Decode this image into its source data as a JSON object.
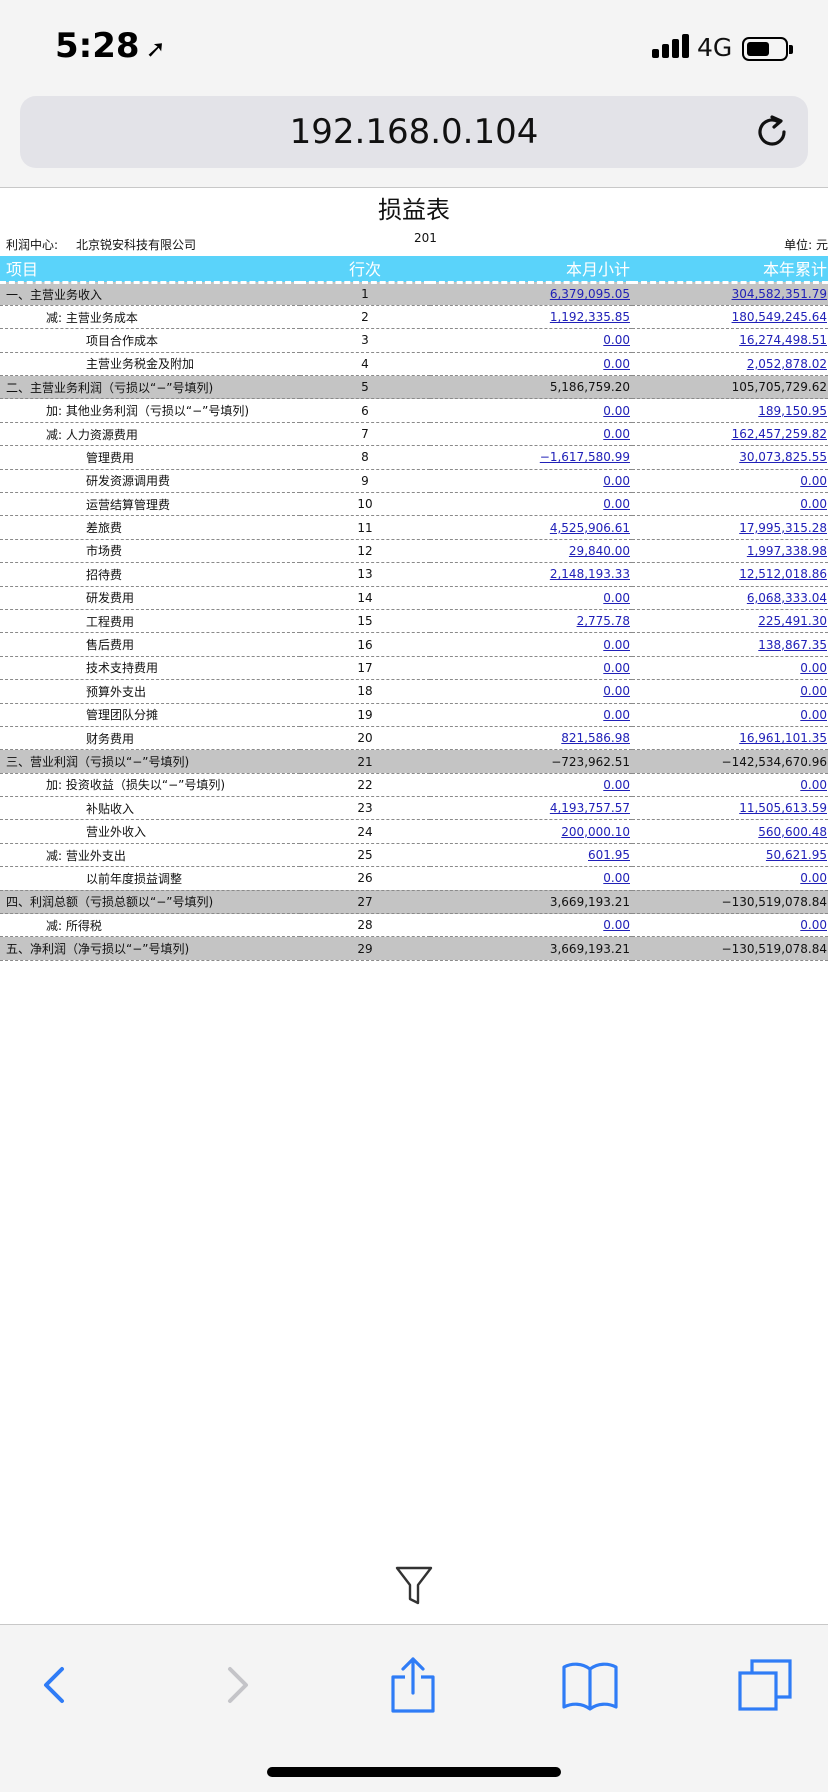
{
  "status_bar": {
    "time": "5:28",
    "network": "4G"
  },
  "browser": {
    "url": "192.168.0.104"
  },
  "report": {
    "title": "损益表",
    "profit_center_label": "利润中心:",
    "profit_center_value": "北京锐安科技有限公司",
    "period": "201",
    "unit": "单位: 元"
  },
  "table": {
    "headers": {
      "item": "项目",
      "line": "行次",
      "month": "本月小计",
      "year": "本年累计"
    },
    "rows": [
      {
        "item": "一、主营业务收入",
        "line": "1",
        "month": "6,379,095.05",
        "year": "304,582,351.79",
        "level": 0,
        "main": true,
        "link": true
      },
      {
        "item": "减: 主营业务成本",
        "line": "2",
        "month": "1,192,335.85",
        "year": "180,549,245.64",
        "level": 1,
        "main": false,
        "link": true
      },
      {
        "item": "项目合作成本",
        "line": "3",
        "month": "0.00",
        "year": "16,274,498.51",
        "level": 2,
        "main": false,
        "link": true
      },
      {
        "item": "主营业务税金及附加",
        "line": "4",
        "month": "0.00",
        "year": "2,052,878.02",
        "level": 2,
        "main": false,
        "link": true
      },
      {
        "item": "二、主营业务利润（亏损以“−”号填列)",
        "line": "5",
        "month": "5,186,759.20",
        "year": "105,705,729.62",
        "level": 0,
        "main": true,
        "link": false
      },
      {
        "item": "加: 其他业务利润（亏损以“−”号填列)",
        "line": "6",
        "month": "0.00",
        "year": "189,150.95",
        "level": 1,
        "main": false,
        "link": true
      },
      {
        "item": "减: 人力资源费用",
        "line": "7",
        "month": "0.00",
        "year": "162,457,259.82",
        "level": 1,
        "main": false,
        "link": true
      },
      {
        "item": "管理费用",
        "line": "8",
        "month": "−1,617,580.99",
        "year": "30,073,825.55",
        "level": 2,
        "main": false,
        "link": true
      },
      {
        "item": "研发资源调用费",
        "line": "9",
        "month": "0.00",
        "year": "0.00",
        "level": 2,
        "main": false,
        "link": true
      },
      {
        "item": "运营结算管理费",
        "line": "10",
        "month": "0.00",
        "year": "0.00",
        "level": 2,
        "main": false,
        "link": true
      },
      {
        "item": "差旅费",
        "line": "11",
        "month": "4,525,906.61",
        "year": "17,995,315.28",
        "level": 2,
        "main": false,
        "link": true
      },
      {
        "item": "市场费",
        "line": "12",
        "month": "29,840.00",
        "year": "1,997,338.98",
        "level": 2,
        "main": false,
        "link": true
      },
      {
        "item": "招待费",
        "line": "13",
        "month": "2,148,193.33",
        "year": "12,512,018.86",
        "level": 2,
        "main": false,
        "link": true
      },
      {
        "item": "研发费用",
        "line": "14",
        "month": "0.00",
        "year": "6,068,333.04",
        "level": 2,
        "main": false,
        "link": true
      },
      {
        "item": "工程费用",
        "line": "15",
        "month": "2,775.78",
        "year": "225,491.30",
        "level": 2,
        "main": false,
        "link": true
      },
      {
        "item": "售后费用",
        "line": "16",
        "month": "0.00",
        "year": "138,867.35",
        "level": 2,
        "main": false,
        "link": true
      },
      {
        "item": "技术支持费用",
        "line": "17",
        "month": "0.00",
        "year": "0.00",
        "level": 2,
        "main": false,
        "link": true
      },
      {
        "item": "预算外支出",
        "line": "18",
        "month": "0.00",
        "year": "0.00",
        "level": 2,
        "main": false,
        "link": true
      },
      {
        "item": "管理团队分摊",
        "line": "19",
        "month": "0.00",
        "year": "0.00",
        "level": 2,
        "main": false,
        "link": true
      },
      {
        "item": "财务费用",
        "line": "20",
        "month": "821,586.98",
        "year": "16,961,101.35",
        "level": 2,
        "main": false,
        "link": true
      },
      {
        "item": "三、营业利润（亏损以“−”号填列)",
        "line": "21",
        "month": "−723,962.51",
        "year": "−142,534,670.96",
        "level": 0,
        "main": true,
        "link": false
      },
      {
        "item": "加: 投资收益（损失以“−”号填列)",
        "line": "22",
        "month": "0.00",
        "year": "0.00",
        "level": 1,
        "main": false,
        "link": true
      },
      {
        "item": "补贴收入",
        "line": "23",
        "month": "4,193,757.57",
        "year": "11,505,613.59",
        "level": 2,
        "main": false,
        "link": true
      },
      {
        "item": "营业外收入",
        "line": "24",
        "month": "200,000.10",
        "year": "560,600.48",
        "level": 2,
        "main": false,
        "link": true
      },
      {
        "item": "减: 营业外支出",
        "line": "25",
        "month": "601.95",
        "year": "50,621.95",
        "level": 1,
        "main": false,
        "link": true
      },
      {
        "item": "以前年度损益调整",
        "line": "26",
        "month": "0.00",
        "year": "0.00",
        "level": 2,
        "main": false,
        "link": true
      },
      {
        "item": "四、利润总额（亏损总额以“−”号填列)",
        "line": "27",
        "month": "3,669,193.21",
        "year": "−130,519,078.84",
        "level": 0,
        "main": true,
        "link": false
      },
      {
        "item": "减: 所得税",
        "line": "28",
        "month": "0.00",
        "year": "0.00",
        "level": 1,
        "main": false,
        "link": true
      },
      {
        "item": "五、净利润（净亏损以“−”号填列)",
        "line": "29",
        "month": "3,669,193.21",
        "year": "−130,519,078.84",
        "level": 0,
        "main": true,
        "link": false
      }
    ]
  },
  "icons": {
    "location": "location-arrow-icon",
    "reload": "reload-icon",
    "filter": "filter-icon",
    "back": "back-chevron-icon",
    "forward": "forward-chevron-icon",
    "share": "share-icon",
    "bookmarks": "bookmarks-icon",
    "tabs": "tabs-icon"
  },
  "colors": {
    "header_bg": "#5ad3fa",
    "section_row_bg": "#c4c4c4",
    "link": "#2020b8",
    "ios_blue": "#2f7cf6"
  }
}
